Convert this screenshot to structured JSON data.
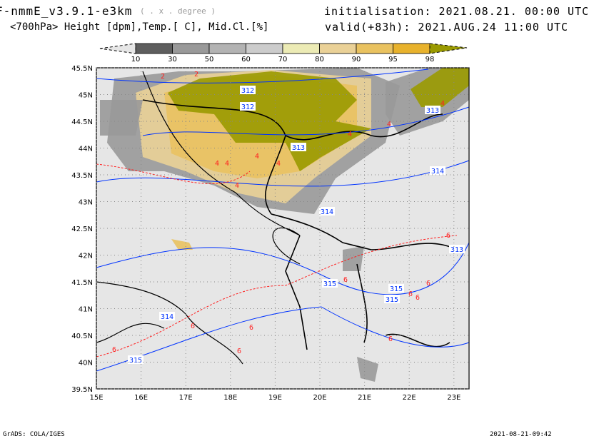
{
  "header": {
    "model": "F-nmmE_v3.9.1-e3km",
    "units_note": "( . x . degree )",
    "variables": "<700hPa> Height [dpm],Temp.[ C], Mid.Cl.[%]",
    "initialisation": "initialisation: 2021.08.21.  00:00 UTC",
    "valid": "valid(+83h): 2021.AUG.24 11:00 UTC"
  },
  "colorbar": {
    "labels": [
      "10",
      "30",
      "50",
      "60",
      "70",
      "80",
      "90",
      "95",
      "98"
    ],
    "colors": [
      "#e6e6e6",
      "#5e5e5e",
      "#999999",
      "#b3b3b3",
      "#cccccc",
      "#ecebb5",
      "#ead197",
      "#e9c260",
      "#e8b22c",
      "#9a9a00"
    ]
  },
  "map": {
    "lat_labels": [
      "45.5N",
      "45N",
      "44.5N",
      "44N",
      "43.5N",
      "43N",
      "42.5N",
      "42N",
      "41.5N",
      "41N",
      "40.5N",
      "40N",
      "39.5N"
    ],
    "lon_labels": [
      "15E",
      "16E",
      "17E",
      "18E",
      "19E",
      "20E",
      "21E",
      "22E",
      "23E"
    ],
    "height_labels": [
      "312",
      "312",
      "313",
      "313",
      "314",
      "314",
      "315",
      "315",
      "315",
      "314",
      "315",
      "313"
    ],
    "temp_labels": [
      "2",
      "2",
      "4",
      "4",
      "4",
      "4",
      "4",
      "4",
      "4",
      "4",
      "6",
      "6",
      "6",
      "6",
      "6",
      "6",
      "6",
      "6",
      "6",
      "6"
    ],
    "colors": {
      "land": "#e6e6e6",
      "height": "#0033ff",
      "temp": "#ff2020"
    }
  },
  "footer": {
    "left": "GrADS: COLA/IGES",
    "right": "2021-08-21-09:42"
  }
}
